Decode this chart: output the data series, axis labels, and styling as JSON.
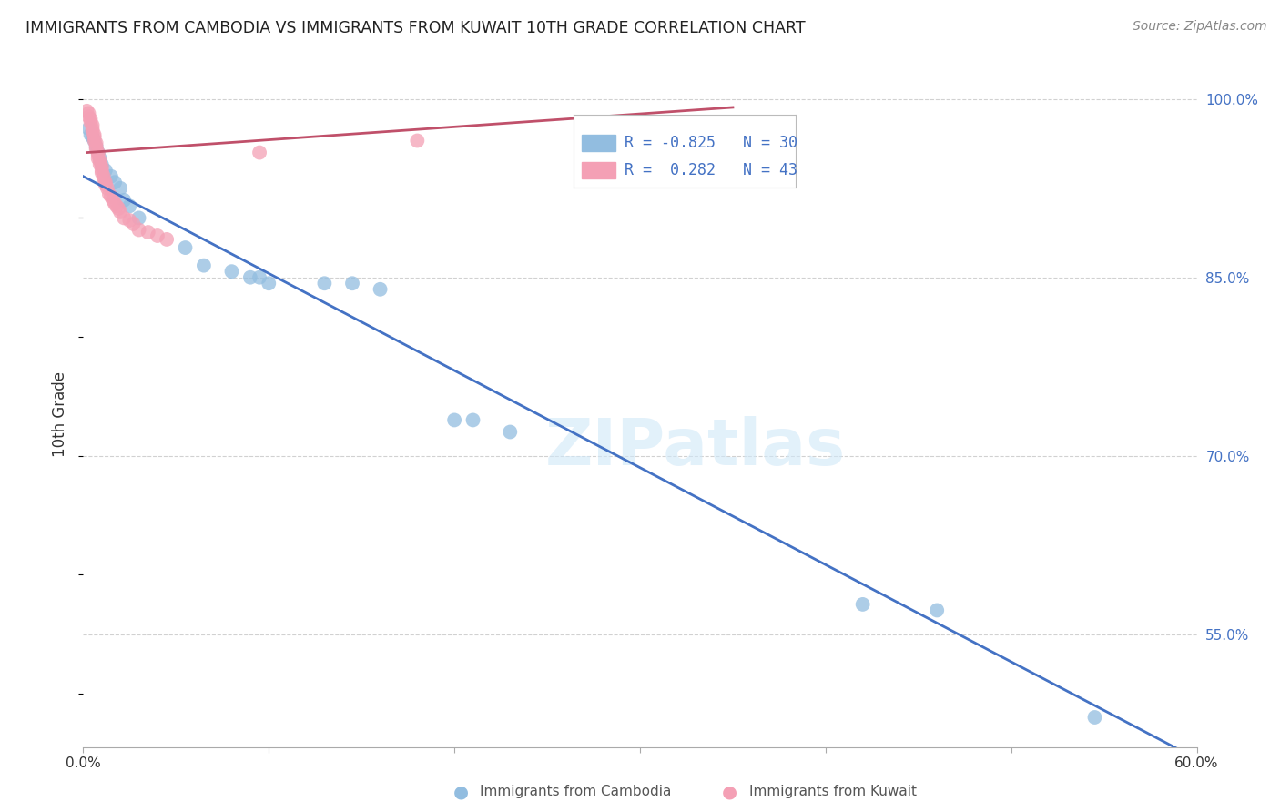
{
  "title": "IMMIGRANTS FROM CAMBODIA VS IMMIGRANTS FROM KUWAIT 10TH GRADE CORRELATION CHART",
  "source": "Source: ZipAtlas.com",
  "ylabel": "10th Grade",
  "xlim": [
    0.0,
    0.6
  ],
  "ylim": [
    0.455,
    1.015
  ],
  "yticks": [
    0.55,
    0.7,
    0.85,
    1.0
  ],
  "xticks": [
    0.0,
    0.1,
    0.2,
    0.3,
    0.4,
    0.5,
    0.6
  ],
  "cambodia_color": "#92bde0",
  "kuwait_color": "#f4a0b5",
  "cambodia_line_color": "#4472c4",
  "kuwait_line_color": "#c0506a",
  "watermark": "ZIPatlas",
  "background_color": "#ffffff",
  "grid_color": "#cccccc",
  "camb_R": "-0.825",
  "camb_N": "30",
  "kuw_R": "0.282",
  "kuw_N": "43",
  "cambodia_x": [
    0.003,
    0.004,
    0.005,
    0.006,
    0.007,
    0.008,
    0.009,
    0.01,
    0.012,
    0.015,
    0.017,
    0.02,
    0.022,
    0.025,
    0.03,
    0.055,
    0.065,
    0.08,
    0.09,
    0.095,
    0.1,
    0.13,
    0.145,
    0.16,
    0.2,
    0.21,
    0.23,
    0.42,
    0.46,
    0.545
  ],
  "cambodia_y": [
    0.975,
    0.97,
    0.968,
    0.965,
    0.96,
    0.955,
    0.95,
    0.945,
    0.94,
    0.935,
    0.93,
    0.925,
    0.915,
    0.91,
    0.9,
    0.875,
    0.86,
    0.855,
    0.85,
    0.85,
    0.845,
    0.845,
    0.845,
    0.84,
    0.73,
    0.73,
    0.72,
    0.575,
    0.57,
    0.48
  ],
  "kuwait_x": [
    0.002,
    0.003,
    0.003,
    0.004,
    0.004,
    0.005,
    0.005,
    0.005,
    0.006,
    0.006,
    0.006,
    0.007,
    0.007,
    0.007,
    0.008,
    0.008,
    0.008,
    0.009,
    0.009,
    0.01,
    0.01,
    0.01,
    0.011,
    0.011,
    0.012,
    0.012,
    0.013,
    0.014,
    0.015,
    0.016,
    0.017,
    0.018,
    0.019,
    0.02,
    0.022,
    0.025,
    0.027,
    0.03,
    0.035,
    0.04,
    0.045,
    0.095,
    0.18
  ],
  "kuwait_y": [
    0.99,
    0.988,
    0.985,
    0.983,
    0.98,
    0.978,
    0.975,
    0.973,
    0.97,
    0.968,
    0.965,
    0.963,
    0.96,
    0.958,
    0.955,
    0.953,
    0.95,
    0.948,
    0.945,
    0.943,
    0.94,
    0.938,
    0.935,
    0.933,
    0.93,
    0.928,
    0.925,
    0.92,
    0.918,
    0.915,
    0.912,
    0.91,
    0.908,
    0.905,
    0.9,
    0.898,
    0.895,
    0.89,
    0.888,
    0.885,
    0.882,
    0.955,
    0.965
  ],
  "camb_line_x0": 0.0,
  "camb_line_y0": 0.935,
  "camb_line_x1": 0.6,
  "camb_line_y1": 0.445,
  "kuw_line_x0": 0.002,
  "kuw_line_y0": 0.955,
  "kuw_line_x1": 0.35,
  "kuw_line_y1": 0.993
}
